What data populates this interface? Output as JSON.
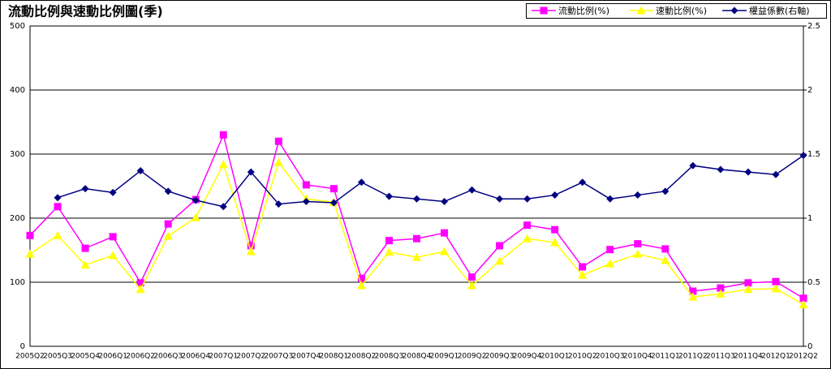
{
  "chart_data": {
    "type": "line",
    "title": "流動比例與速動比例圖(季)",
    "categories": [
      "2005Q2",
      "2005Q3",
      "2005Q4",
      "2006Q1",
      "2006Q2",
      "2006Q3",
      "2006Q4",
      "2007Q1",
      "2007Q2",
      "2007Q3",
      "2007Q4",
      "2008Q1",
      "2008Q2",
      "2008Q3",
      "2008Q4",
      "2009Q1",
      "2009Q2",
      "2009Q3",
      "2009Q4",
      "2010Q1",
      "2010Q2",
      "2010Q3",
      "2010Q4",
      "2011Q1",
      "2011Q2",
      "2011Q3",
      "2011Q4",
      "2012Q1",
      "2012Q2"
    ],
    "series": [
      {
        "name": "流動比例(%)",
        "color": "#ff00ff",
        "marker": "square",
        "values": [
          173,
          218,
          153,
          171,
          99,
          191,
          229,
          330,
          157,
          320,
          252,
          246,
          106,
          165,
          168,
          177,
          108,
          157,
          189,
          182,
          124,
          151,
          160,
          152,
          86,
          91,
          99,
          101,
          75
        ]
      },
      {
        "name": "速動比例(%)",
        "color": "#ffff00",
        "marker": "triangle",
        "values": [
          144,
          173,
          127,
          142,
          89,
          172,
          201,
          284,
          148,
          287,
          230,
          225,
          95,
          147,
          139,
          148,
          95,
          133,
          168,
          162,
          111,
          129,
          144,
          134,
          77,
          82,
          89,
          90,
          65
        ]
      },
      {
        "name": "權益係數(右軸)",
        "color": "#000080",
        "marker": "diamond",
        "axis": "y2",
        "values": [
          null,
          1.16,
          1.23,
          1.2,
          1.37,
          1.21,
          1.14,
          1.09,
          1.36,
          1.11,
          1.13,
          1.12,
          1.28,
          1.17,
          1.15,
          1.13,
          1.22,
          1.15,
          1.15,
          1.18,
          1.28,
          1.15,
          1.18,
          1.21,
          1.41,
          1.38,
          1.36,
          1.34,
          1.49
        ]
      }
    ],
    "ylim": [
      0,
      500
    ],
    "yticks": [
      0,
      100,
      200,
      300,
      400,
      500
    ],
    "y2lim": [
      0,
      2.5
    ],
    "y2ticks": [
      0,
      0.5,
      1,
      1.5,
      2,
      2.5
    ],
    "grid": true,
    "legend": "top-right"
  }
}
